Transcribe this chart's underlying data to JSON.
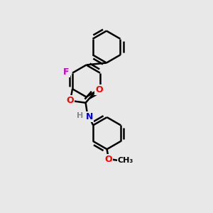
{
  "background_color": "#e8e8e8",
  "bond_color": "#000000",
  "bond_lw": 1.8,
  "F_color": "#cc00cc",
  "O_color": "#ff0000",
  "N_color": "#0000dd",
  "H_color": "#888888",
  "ring_r": 0.75,
  "xlim": [
    0,
    10
  ],
  "ylim": [
    0,
    10
  ]
}
